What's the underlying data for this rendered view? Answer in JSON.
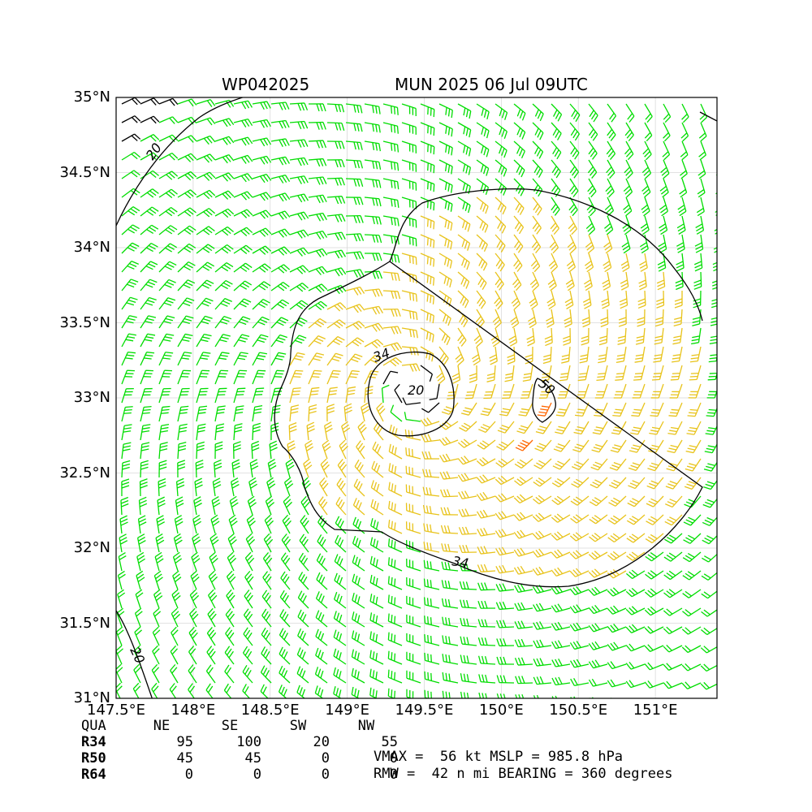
{
  "title": {
    "left": "WP042025",
    "right": "MUN 2025 06 Jul 09UTC"
  },
  "axes": {
    "lat_labels": [
      "35°N",
      "34.5°N",
      "34°N",
      "33.5°N",
      "33°N",
      "32.5°N",
      "32°N",
      "31.5°N",
      "31°N"
    ],
    "lat_values": [
      35,
      34.5,
      34,
      33.5,
      33,
      32.5,
      32,
      31.5,
      31
    ],
    "lon_labels": [
      "147.5°E",
      "148°E",
      "148.5°E",
      "149°E",
      "149.5°E",
      "150°E",
      "150.5°E",
      "151°E"
    ],
    "lon_values": [
      147.5,
      148,
      148.5,
      149,
      149.5,
      150,
      150.5,
      151
    ],
    "lat_range": [
      31,
      35
    ],
    "lon_range": [
      147.5,
      151.4
    ],
    "grid": true
  },
  "storm": {
    "center_lon": 149.43,
    "center_lat": 33.06
  },
  "contours": {
    "labels": [
      "20",
      "34",
      "50",
      "34",
      "20",
      "20"
    ],
    "levels_kt": [
      20,
      34,
      50
    ]
  },
  "wind_colors": {
    "below_34": "#00dd00",
    "34_to_50": "#e8c31a",
    "50_to_64": "#ff6600",
    "calm_outer": "#000000",
    "contour": "#000000"
  },
  "radii_table": {
    "headers": [
      "QUA",
      "NE",
      "SE",
      "SW",
      "NW"
    ],
    "rows": [
      {
        "label": "R34",
        "values": [
          "95",
          "100",
          "20",
          "55"
        ]
      },
      {
        "label": "R50",
        "values": [
          "45",
          "45",
          "0",
          "0"
        ]
      },
      {
        "label": "R64",
        "values": [
          "0",
          "0",
          "0",
          "0"
        ]
      }
    ]
  },
  "info": {
    "line1": "VMAX =  56 kt MSLP = 985.8 hPa",
    "line2": "RMW =  42 n mi BEARING = 360 degrees"
  }
}
